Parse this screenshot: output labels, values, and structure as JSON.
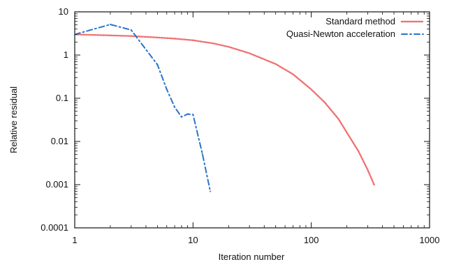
{
  "chart_data": {
    "type": "line",
    "xlabel": "Iteration number",
    "ylabel": "Relative residual",
    "xscale": "log",
    "yscale": "log",
    "xlim": [
      1,
      1000
    ],
    "ylim": [
      0.0001,
      10
    ],
    "grid": false,
    "legend_position": "top-right",
    "x_ticks": [
      "1",
      "10",
      "100",
      "1000"
    ],
    "y_ticks": [
      "0.0001",
      "0.001",
      "0.01",
      "0.1",
      "1",
      "10"
    ],
    "x_tick_values": [
      1,
      10,
      100,
      1000
    ],
    "y_tick_values": [
      0.0001,
      0.001,
      0.01,
      0.1,
      1,
      10
    ],
    "series": [
      {
        "name": "Standard method",
        "color": "#f07070",
        "line_style": "dotted",
        "x": [
          1,
          2,
          3,
          5,
          7,
          10,
          15,
          20,
          30,
          50,
          70,
          100,
          130,
          170,
          200,
          250,
          300,
          340
        ],
        "values": [
          3.0,
          2.85,
          2.75,
          2.55,
          2.4,
          2.2,
          1.85,
          1.55,
          1.1,
          0.62,
          0.36,
          0.16,
          0.08,
          0.033,
          0.016,
          0.006,
          0.0022,
          0.001
        ]
      },
      {
        "name": "Quasi-Newton acceleration",
        "color": "#2a74c8",
        "line_style": "dash-dot",
        "x": [
          1,
          2,
          3,
          5,
          6,
          7,
          8,
          9,
          10,
          12,
          14
        ],
        "values": [
          3.0,
          5.1,
          3.8,
          0.6,
          0.16,
          0.062,
          0.037,
          0.043,
          0.042,
          0.0052,
          0.0007
        ]
      }
    ]
  }
}
